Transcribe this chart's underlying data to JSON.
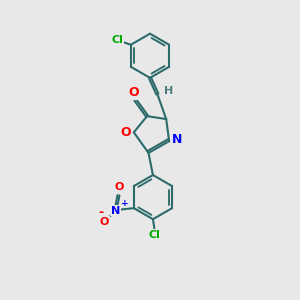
{
  "bg_color": "#e8e8e8",
  "bond_color": "#2d6b6b",
  "bond_width": 1.5,
  "atom_colors": {
    "O": "#ff0000",
    "N": "#0000ff",
    "Cl": "#00aa00",
    "H": "#4d7f7f"
  },
  "figsize": [
    3.0,
    3.0
  ],
  "dpi": 100,
  "xlim": [
    0,
    6
  ],
  "ylim": [
    0,
    10
  ]
}
